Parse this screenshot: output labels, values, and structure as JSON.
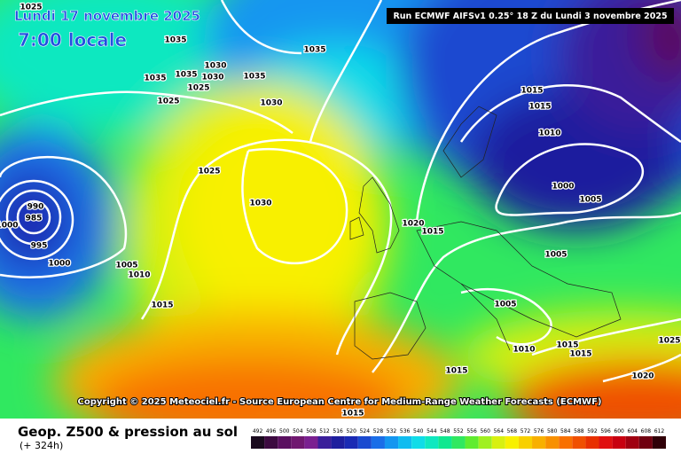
{
  "header": {
    "date": "Lundi 17 novembre 2025",
    "time": "7:00 locale",
    "run": "Run ECMWF AIFSv1 0.25° 18 Z du Lundi 3 novembre 2025"
  },
  "map": {
    "isobar_labels": [
      "1025",
      "1035",
      "1035",
      "1030",
      "1035",
      "1035",
      "1030",
      "1035",
      "1025",
      "1025",
      "1030",
      "1015",
      "1015",
      "1010",
      "1000",
      "1005",
      "1025",
      "1030",
      "990",
      "985",
      "995",
      "1000",
      "1005",
      "1010",
      "1015",
      "1020",
      "1015",
      "1005",
      "1005",
      "1010",
      "1015",
      "1015",
      "1025",
      "1015",
      "1020",
      "1015",
      "1000"
    ]
  },
  "copyright": "Copyright © 2025 Meteociel.fr - Source European Centre for Medium-Range Weather Forecasts (ECMWF)",
  "footer": {
    "title": "Geop. Z500 & pression au sol",
    "lead": "(+ 324h)"
  },
  "colorbar": {
    "ticks": [
      492,
      496,
      500,
      504,
      508,
      512,
      516,
      520,
      524,
      528,
      532,
      536,
      540,
      544,
      548,
      552,
      556,
      560,
      564,
      568,
      572,
      576,
      580,
      584,
      588,
      592,
      596,
      600,
      604,
      608,
      612
    ],
    "colors": [
      "#1a0a1e",
      "#3c0a40",
      "#5a1060",
      "#701870",
      "#7a2090",
      "#3a1e9a",
      "#1e1e9e",
      "#1a2ab4",
      "#1a4ad0",
      "#1a6ee8",
      "#1496f0",
      "#10bcf0",
      "#10dce8",
      "#10e8c0",
      "#10e890",
      "#30e860",
      "#60ec30",
      "#a0f020",
      "#d8f010",
      "#f8f000",
      "#f8d000",
      "#f8b000",
      "#f89000",
      "#f87000",
      "#f05000",
      "#e83000",
      "#e01010",
      "#c80010",
      "#a00010",
      "#700010",
      "#300008"
    ]
  }
}
